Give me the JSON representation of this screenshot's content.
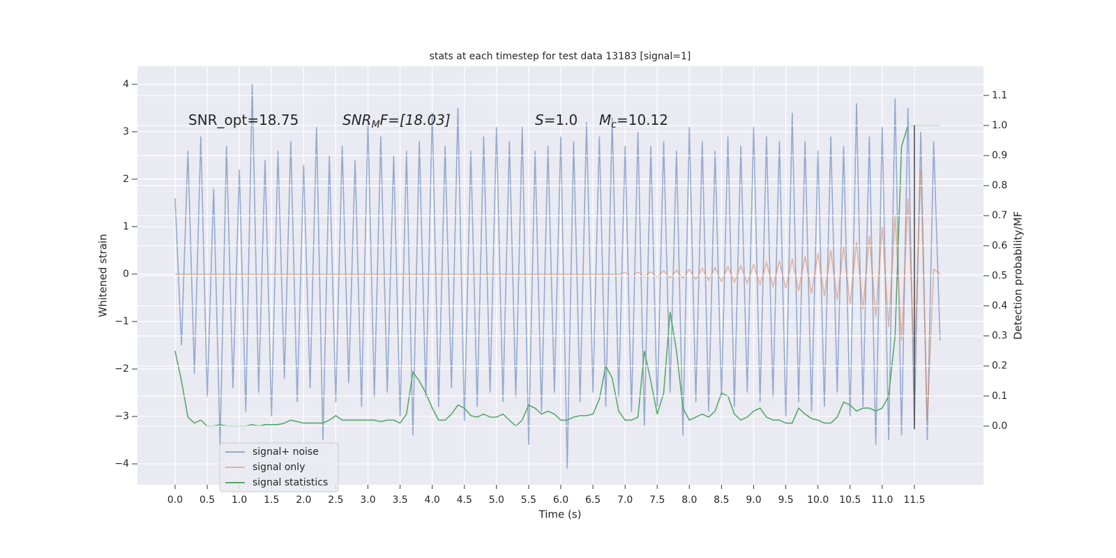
{
  "chart_data": {
    "type": "line",
    "title": "stats at each timestep for test data 13183 [signal=1]",
    "xlabel": "Time (s)",
    "ylabel": "Whitened strain",
    "y2label": "Detection probability/MF",
    "annotations": [
      {
        "main": "SNR_opt=18.75"
      },
      {
        "main": "SNR",
        "sub": "M",
        "rest": "F=[18.03]"
      },
      {
        "main": "S",
        "rest": "=1.0"
      },
      {
        "main": "M",
        "sub": "c",
        "rest": "=10.12"
      }
    ],
    "x": [
      0.0,
      0.1,
      0.2,
      0.3,
      0.4,
      0.5,
      0.6,
      0.7,
      0.8,
      0.9,
      1.0,
      1.1,
      1.2,
      1.3,
      1.4,
      1.5,
      1.6,
      1.7,
      1.8,
      1.9,
      2.0,
      2.1,
      2.2,
      2.3,
      2.4,
      2.5,
      2.6,
      2.7,
      2.8,
      2.9,
      3.0,
      3.1,
      3.2,
      3.3,
      3.4,
      3.5,
      3.6,
      3.7,
      3.8,
      3.9,
      4.0,
      4.1,
      4.2,
      4.3,
      4.4,
      4.5,
      4.6,
      4.7,
      4.8,
      4.9,
      5.0,
      5.1,
      5.2,
      5.3,
      5.4,
      5.5,
      5.6,
      5.7,
      5.8,
      5.9,
      6.0,
      6.1,
      6.2,
      6.3,
      6.4,
      6.5,
      6.6,
      6.7,
      6.8,
      6.9,
      7.0,
      7.1,
      7.2,
      7.3,
      7.4,
      7.5,
      7.6,
      7.7,
      7.8,
      7.9,
      8.0,
      8.1,
      8.2,
      8.3,
      8.4,
      8.5,
      8.6,
      8.7,
      8.8,
      8.9,
      9.0,
      9.1,
      9.2,
      9.3,
      9.4,
      9.5,
      9.6,
      9.7,
      9.8,
      9.9,
      10.0,
      10.1,
      10.2,
      10.3,
      10.4,
      10.5,
      10.6,
      10.7,
      10.8,
      10.9,
      11.0,
      11.1,
      11.2,
      11.3,
      11.4,
      11.5,
      11.6,
      11.7,
      11.8,
      11.9
    ],
    "series": [
      {
        "name": "signal+ noise",
        "color": "#4c72b0",
        "axis": "y",
        "values": [
          1.6,
          -1.5,
          2.6,
          -2.1,
          2.9,
          -2.6,
          1.8,
          -3.6,
          2.7,
          -2.4,
          2.2,
          -2.9,
          4.0,
          -2.5,
          2.4,
          -3.0,
          2.6,
          -2.2,
          2.8,
          -2.7,
          2.3,
          -2.4,
          3.1,
          -3.5,
          2.5,
          -2.7,
          2.7,
          -2.3,
          2.4,
          -2.8,
          3.2,
          -2.6,
          2.9,
          -2.5,
          2.5,
          -3.0,
          2.6,
          -3.4,
          2.8,
          -2.6,
          3.4,
          -2.8,
          2.7,
          -2.4,
          3.5,
          -3.1,
          2.6,
          -2.8,
          2.9,
          -2.5,
          3.1,
          -2.7,
          2.8,
          -2.6,
          3.1,
          -3.6,
          2.6,
          -2.9,
          2.7,
          -2.5,
          2.9,
          -4.1,
          2.8,
          -2.7,
          3.2,
          -2.5,
          2.9,
          -2.8,
          3.3,
          -2.6,
          2.7,
          -2.9,
          3.0,
          -3.2,
          2.7,
          -2.8,
          2.8,
          -2.5,
          2.6,
          -3.4,
          3.1,
          -2.7,
          2.8,
          -2.9,
          2.6,
          -2.6,
          2.9,
          -2.8,
          2.7,
          -2.5,
          3.1,
          -2.7,
          2.9,
          -2.6,
          2.8,
          -3.0,
          3.4,
          -2.7,
          2.8,
          -2.9,
          2.6,
          -2.8,
          2.9,
          -2.5,
          2.7,
          -3.0,
          3.6,
          -2.8,
          2.9,
          -3.6,
          3.1,
          -3.5,
          3.7,
          -3.4,
          3.5,
          -3.2,
          3.0,
          -3.5,
          2.8,
          -1.4
        ]
      },
      {
        "name": "signal only",
        "color": "#dd8452",
        "axis": "y",
        "values": [
          0,
          0,
          0,
          0,
          0,
          0,
          0,
          0,
          0,
          0,
          0,
          0,
          0,
          0,
          0,
          0,
          0,
          0,
          0,
          0,
          0,
          0,
          0,
          0,
          0,
          0,
          0,
          0,
          0,
          0,
          0,
          0,
          0,
          0,
          0,
          0,
          0,
          0,
          0,
          0,
          0,
          0,
          0,
          0,
          0,
          0,
          0,
          0,
          0,
          0,
          0,
          0,
          0,
          0,
          0,
          0,
          0,
          0,
          0,
          0,
          0,
          0,
          0,
          0,
          0,
          0,
          0,
          0,
          0,
          0,
          0.03,
          -0.04,
          0.04,
          -0.05,
          0.05,
          -0.06,
          0.07,
          -0.08,
          0.08,
          -0.09,
          0.1,
          -0.11,
          0.12,
          -0.13,
          0.14,
          -0.15,
          0.16,
          -0.17,
          0.18,
          -0.19,
          0.2,
          -0.22,
          0.24,
          -0.26,
          0.28,
          -0.3,
          0.32,
          -0.35,
          0.38,
          -0.41,
          0.44,
          -0.47,
          0.5,
          -0.54,
          0.58,
          -0.63,
          0.68,
          -0.74,
          0.81,
          -0.9,
          1.0,
          -1.12,
          1.25,
          -1.4,
          1.6,
          -1.85,
          2.2,
          -3.1,
          0.1,
          0.0
        ]
      },
      {
        "name": "signal statistics",
        "color": "#55a868",
        "axis": "y2",
        "values": [
          0.25,
          0.15,
          0.03,
          0.01,
          0.02,
          0.0,
          0.0,
          0.005,
          0.0,
          0.0,
          0.0,
          0.0,
          0.005,
          0.0,
          0.005,
          0.005,
          0.005,
          0.01,
          0.02,
          0.015,
          0.01,
          0.01,
          0.01,
          0.01,
          0.02,
          0.035,
          0.02,
          0.02,
          0.02,
          0.02,
          0.02,
          0.02,
          0.015,
          0.02,
          0.02,
          0.01,
          0.04,
          0.18,
          0.15,
          0.11,
          0.06,
          0.02,
          0.02,
          0.04,
          0.07,
          0.06,
          0.035,
          0.03,
          0.04,
          0.03,
          0.03,
          0.04,
          0.02,
          0.0,
          0.02,
          0.07,
          0.06,
          0.04,
          0.05,
          0.04,
          0.02,
          0.02,
          0.03,
          0.035,
          0.035,
          0.04,
          0.09,
          0.2,
          0.16,
          0.05,
          0.02,
          0.02,
          0.03,
          0.25,
          0.15,
          0.04,
          0.11,
          0.38,
          0.25,
          0.06,
          0.02,
          0.03,
          0.04,
          0.03,
          0.05,
          0.11,
          0.1,
          0.04,
          0.02,
          0.03,
          0.05,
          0.06,
          0.03,
          0.02,
          0.02,
          0.01,
          0.01,
          0.06,
          0.04,
          0.025,
          0.02,
          0.01,
          0.01,
          0.03,
          0.08,
          0.07,
          0.05,
          0.06,
          0.06,
          0.05,
          0.06,
          0.1,
          0.3,
          0.93,
          1.0,
          1.0,
          1.0,
          1.0,
          1.0,
          1.0
        ]
      }
    ],
    "vline": {
      "x": 11.5,
      "ymin": -0.01,
      "ymax": 1.0,
      "axis": "y2",
      "color": "#444444"
    },
    "xlim": [
      -0.586,
      12.575
    ],
    "xticks": [
      {
        "value": 0,
        "label": "0.0"
      },
      0.5,
      {
        "value": 1,
        "label": "1.0"
      },
      1.5,
      {
        "value": 2,
        "label": "2.0"
      },
      2.5,
      {
        "value": 3,
        "label": "3.0"
      },
      3.5,
      {
        "value": 4,
        "label": "4.0"
      },
      4.5,
      {
        "value": 5,
        "label": "5.0"
      },
      5.5,
      {
        "value": 6,
        "label": "6.0"
      },
      6.5,
      {
        "value": 7,
        "label": "7.0"
      },
      7.5,
      {
        "value": 8,
        "label": "8.0"
      },
      8.5,
      {
        "value": 9,
        "label": "9.0"
      },
      9.5,
      {
        "value": 10,
        "label": "10.0"
      },
      10.5,
      {
        "value": 11,
        "label": "11.0"
      },
      11.5
    ],
    "ylim": [
      -4.44,
      4.38
    ],
    "yticks": [
      {
        "value": -4,
        "label": "−4"
      },
      {
        "value": -3,
        "label": "−3"
      },
      {
        "value": -2,
        "label": "−2"
      },
      {
        "value": -1,
        "label": "−1"
      },
      0,
      1,
      2,
      3,
      4
    ],
    "y2lim": [
      -0.195,
      1.197
    ],
    "y2ticks": [
      {
        "value": 0,
        "label": "0.0"
      },
      0.1,
      0.2,
      0.3,
      0.4,
      0.5,
      0.6,
      0.7,
      0.8,
      0.9,
      {
        "value": 1,
        "label": "1.0"
      },
      1.1
    ],
    "grid": true,
    "legend": "lower left"
  }
}
